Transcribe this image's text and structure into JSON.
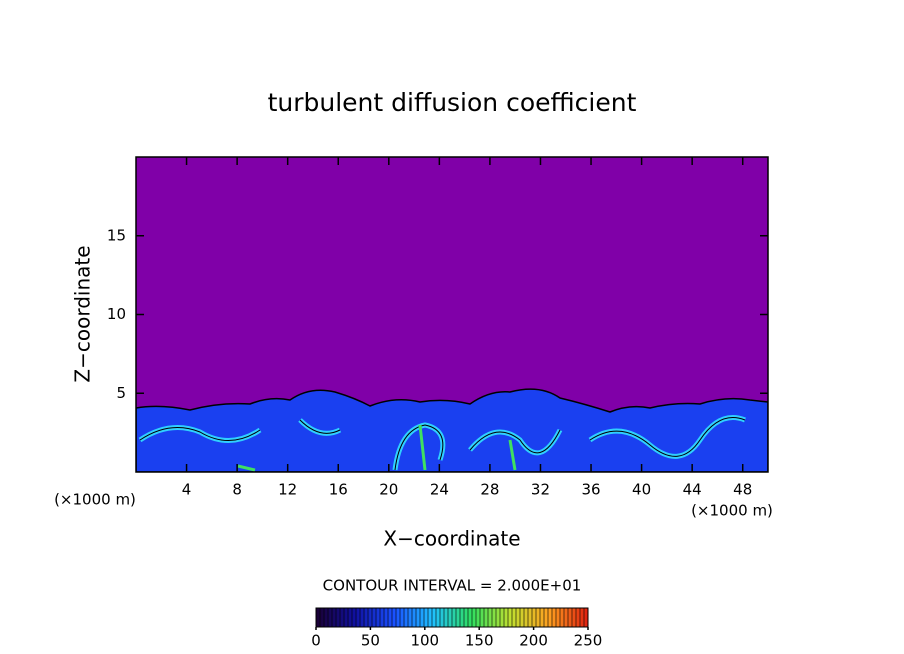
{
  "chart_data": {
    "type": "contour",
    "title": "turbulent diffusion coefficient",
    "x_label": "X−coordinate",
    "y_label": "Z−coordinate",
    "unit_labels": [
      "(×1000 m)",
      "(×1000 m)"
    ],
    "xlim": [
      0,
      50
    ],
    "xticks": [
      4,
      8,
      12,
      16,
      20,
      24,
      28,
      32,
      36,
      40,
      44,
      48
    ],
    "ylim": [
      0,
      20
    ],
    "yticks": [
      5,
      10,
      15
    ],
    "contour_interval_label": "CONTOUR INTERVAL = 2.000E+01",
    "colorbar": {
      "clim": [
        0,
        250
      ],
      "ticks": [
        0,
        50,
        100,
        150,
        200,
        250
      ],
      "colors": [
        "#1a0033",
        "#1010a0",
        "#1a50ff",
        "#20c0ff",
        "#30e060",
        "#c0e030",
        "#ffa020",
        "#e02010"
      ]
    },
    "background_color": "#8000a8"
  }
}
